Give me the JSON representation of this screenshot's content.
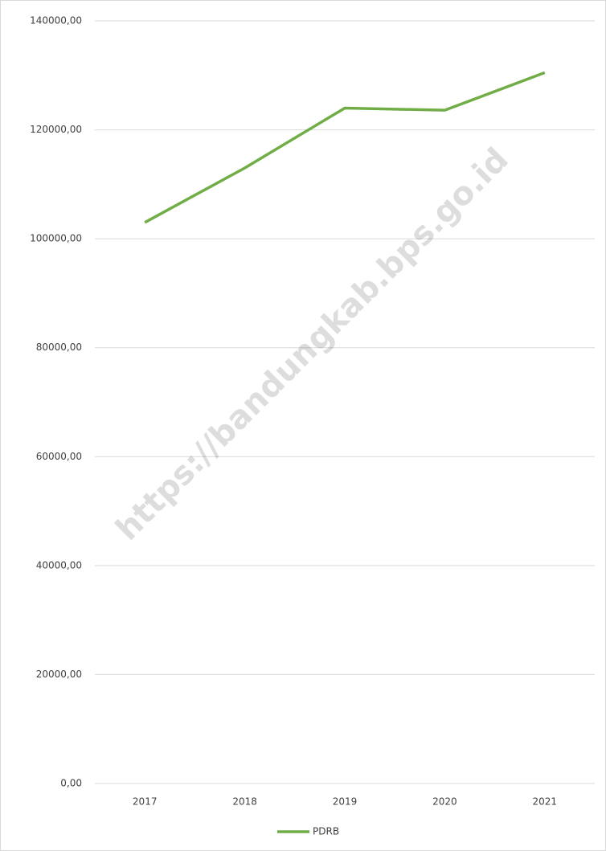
{
  "chart_data": {
    "type": "line",
    "categories": [
      "2017",
      "2018",
      "2019",
      "2020",
      "2021"
    ],
    "series": [
      {
        "name": "PDRB",
        "color": "#70ad47",
        "values": [
          103000,
          113000,
          124000,
          123600,
          130500
        ]
      }
    ],
    "ylim": [
      0,
      140000
    ],
    "yticks": [
      {
        "value": 0,
        "label": "0,00"
      },
      {
        "value": 20000,
        "label": "20000,00"
      },
      {
        "value": 40000,
        "label": "40000,00"
      },
      {
        "value": 60000,
        "label": "60000,00"
      },
      {
        "value": 80000,
        "label": "80000,00"
      },
      {
        "value": 100000,
        "label": "100000,00"
      },
      {
        "value": 120000,
        "label": "120000,00"
      },
      {
        "value": 140000,
        "label": "140000,00"
      }
    ],
    "grid": true,
    "legend": "bottom",
    "watermark": "https://bandungkab.bps.go.id"
  }
}
